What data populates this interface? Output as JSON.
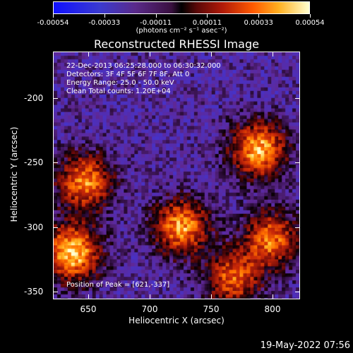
{
  "colorbar": {
    "tick_labels": [
      "-0.00054",
      "-0.00033",
      "-0.00011",
      "0.00011",
      "0.00033",
      "0.00054"
    ],
    "units_label": "(photons cm⁻² s⁻¹ asec⁻²)"
  },
  "title": "Reconstructed RHESSI Image",
  "info": {
    "line1": "22-Dec-2013 06:25:28.000 to 06:30:32.000",
    "line2": "Detectors: 3F 4F 5F 6F 7F 8F, Att 0",
    "line3": "Energy Range: 25.0 - 50.0 keV",
    "line4": "Clean     Total counts: 1.20E+04",
    "peak": "Position of Peak = [621,-337]"
  },
  "axes": {
    "xlabel": "Heliocentric X (arcsec)",
    "ylabel": "Heliocentric Y (arcsec)",
    "x_ticks": [
      "650",
      "700",
      "750",
      "800"
    ],
    "y_ticks": [
      "-200",
      "-250",
      "-300",
      "-350"
    ]
  },
  "chart_data": {
    "type": "heatmap",
    "title": "Reconstructed RHESSI Image",
    "xlabel": "Heliocentric X (arcsec)",
    "ylabel": "Heliocentric Y (arcsec)",
    "xlim": [
      621,
      812
    ],
    "ylim": [
      -356,
      -165
    ],
    "x_ticks": [
      650,
      700,
      750,
      800
    ],
    "y_ticks": [
      -200,
      -250,
      -300,
      -350
    ],
    "colorbar_range": [
      -0.00054,
      0.00054
    ],
    "peak": [
      621,
      -337
    ],
    "hot_spots": [
      {
        "x": 635,
        "y": -320,
        "level": 1.0
      },
      {
        "x": 645,
        "y": -265,
        "level": 0.8
      },
      {
        "x": 720,
        "y": -300,
        "level": 0.85
      },
      {
        "x": 780,
        "y": -240,
        "level": 0.9
      },
      {
        "x": 790,
        "y": -310,
        "level": 0.75
      },
      {
        "x": 760,
        "y": -340,
        "level": 0.7
      }
    ]
  },
  "timestamp": "19-May-2022 07:56"
}
